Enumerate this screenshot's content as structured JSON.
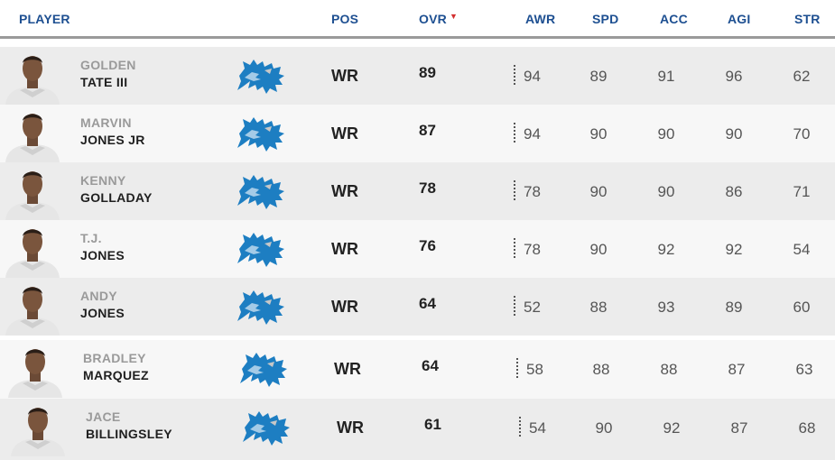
{
  "columns": {
    "player": "PLAYER",
    "pos": "POS",
    "ovr": "OVR",
    "awr": "AWR",
    "spd": "SPD",
    "acc": "ACC",
    "agi": "AGI",
    "str": "STR"
  },
  "sort": {
    "column": "OVR",
    "direction": "descending",
    "indicator_color": "#d32f2f"
  },
  "team_logo": {
    "icon": "detroit-lions-logo",
    "color": "#1d7ec2"
  },
  "players": [
    {
      "first": "GOLDEN",
      "last": "TATE III",
      "pos": "WR",
      "ovr": "89",
      "awr": "94",
      "spd": "89",
      "acc": "91",
      "agi": "96",
      "str": "62"
    },
    {
      "first": "MARVIN",
      "last": "JONES JR",
      "pos": "WR",
      "ovr": "87",
      "awr": "94",
      "spd": "90",
      "acc": "90",
      "agi": "90",
      "str": "70"
    },
    {
      "first": "KENNY",
      "last": "GOLLADAY",
      "pos": "WR",
      "ovr": "78",
      "awr": "78",
      "spd": "90",
      "acc": "90",
      "agi": "86",
      "str": "71"
    },
    {
      "first": "T.J.",
      "last": "JONES",
      "pos": "WR",
      "ovr": "76",
      "awr": "78",
      "spd": "90",
      "acc": "92",
      "agi": "92",
      "str": "54"
    },
    {
      "first": "ANDY",
      "last": "JONES",
      "pos": "WR",
      "ovr": "64",
      "awr": "52",
      "spd": "88",
      "acc": "93",
      "agi": "89",
      "str": "60"
    },
    {
      "first": "BRADLEY",
      "last": "MARQUEZ",
      "pos": "WR",
      "ovr": "64",
      "awr": "58",
      "spd": "88",
      "acc": "88",
      "agi": "87",
      "str": "63"
    },
    {
      "first": "JACE",
      "last": "BILLINGSLEY",
      "pos": "WR",
      "ovr": "61",
      "awr": "54",
      "spd": "90",
      "acc": "92",
      "agi": "87",
      "str": "68"
    }
  ]
}
